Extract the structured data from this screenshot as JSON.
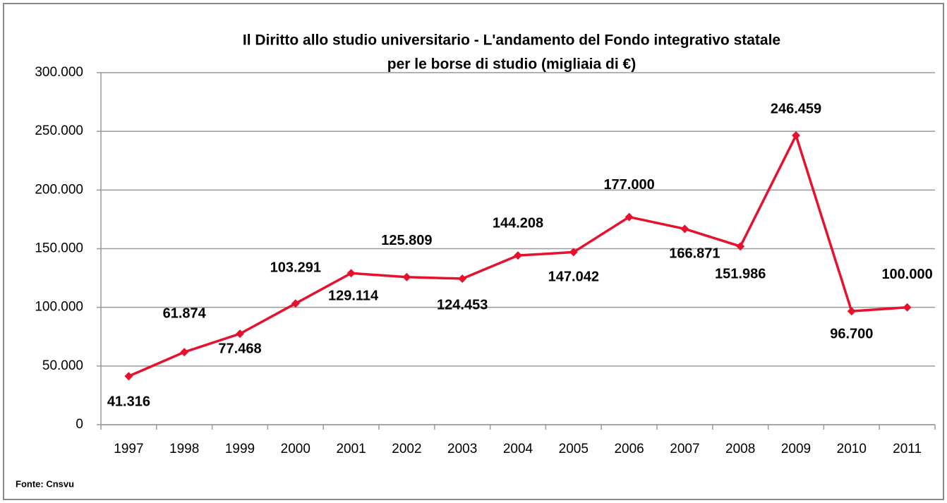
{
  "chart_data": {
    "type": "line",
    "title": [
      "Il Diritto allo studio universitario - L'andamento del Fondo integrativo statale",
      "per le borse di studio (migliaia di €)"
    ],
    "categories": [
      "1997",
      "1998",
      "1999",
      "2000",
      "2001",
      "2002",
      "2003",
      "2004",
      "2005",
      "2006",
      "2007",
      "2008",
      "2009",
      "2010",
      "2011"
    ],
    "series": [
      {
        "name": "Fondo integrativo statale",
        "color": "#e8112d",
        "values": [
          41316,
          61874,
          77468,
          103291,
          129114,
          125809,
          124453,
          144208,
          147042,
          177000,
          166871,
          151986,
          246459,
          96700,
          100000
        ],
        "value_labels": [
          "41.316",
          "61.874",
          "77.468",
          "103.291",
          "129.114",
          "125.809",
          "124.453",
          "144.208",
          "147.042",
          "177.000",
          "166.871",
          "151.986",
          "246.459",
          "96.700",
          "100.000"
        ]
      }
    ],
    "ylim": [
      0,
      300000
    ],
    "yticks": [
      0,
      {
        "value": 50000,
        "label": "50.000"
      },
      {
        "value": 100000,
        "label": "100.000"
      },
      {
        "value": 150000,
        "label": "150.000"
      },
      {
        "value": 200000,
        "label": "200.000"
      },
      {
        "value": 250000,
        "label": "250.000"
      },
      {
        "value": 300000,
        "label": "300.000"
      }
    ],
    "grid": true,
    "source": "Fonte: Cnsvu"
  }
}
